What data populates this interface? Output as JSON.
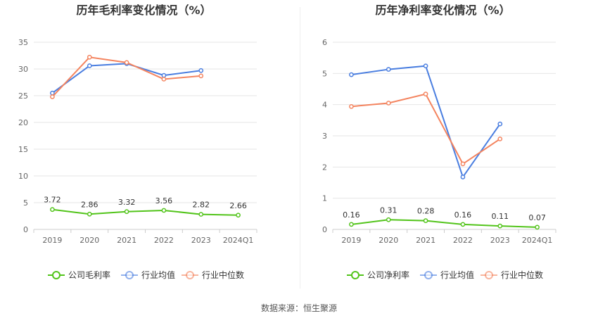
{
  "source": "数据来源：恒生聚源",
  "chart_data": [
    {
      "type": "line",
      "title": "历年毛利率变化情况（%）",
      "categories": [
        "2019",
        "2020",
        "2021",
        "2022",
        "2023",
        "2024Q1"
      ],
      "ylim": [
        0,
        35
      ],
      "yticks": [
        0,
        5,
        10,
        15,
        20,
        25,
        30,
        35
      ],
      "grid": true,
      "legend": "bottom",
      "series": [
        {
          "name": "公司毛利率",
          "color": "#52c41a",
          "values": [
            3.72,
            2.86,
            3.32,
            3.56,
            2.82,
            2.66
          ],
          "labels": [
            "3.72",
            "2.86",
            "3.32",
            "3.56",
            "2.82",
            "2.66"
          ]
        },
        {
          "name": "行业均值",
          "color": "#4a7ee0",
          "values": [
            25.5,
            30.6,
            31.0,
            28.8,
            29.7,
            null
          ]
        },
        {
          "name": "行业中位数",
          "color": "#f4845f",
          "values": [
            24.8,
            32.2,
            31.2,
            28.1,
            28.7,
            null
          ]
        }
      ]
    },
    {
      "type": "line",
      "title": "历年净利率变化情况（%）",
      "categories": [
        "2019",
        "2020",
        "2021",
        "2022",
        "2023",
        "2024Q1"
      ],
      "ylim": [
        0,
        6
      ],
      "yticks": [
        0,
        1,
        2,
        3,
        4,
        5,
        6
      ],
      "grid": true,
      "legend": "bottom",
      "series": [
        {
          "name": "公司净利率",
          "color": "#52c41a",
          "values": [
            0.16,
            0.31,
            0.28,
            0.16,
            0.11,
            0.07
          ],
          "labels": [
            "0.16",
            "0.31",
            "0.28",
            "0.16",
            "0.11",
            "0.07"
          ]
        },
        {
          "name": "行业均值",
          "color": "#4a7ee0",
          "values": [
            4.96,
            5.13,
            5.24,
            1.68,
            3.38,
            null
          ]
        },
        {
          "name": "行业中位数",
          "color": "#f4845f",
          "values": [
            3.94,
            4.05,
            4.34,
            2.1,
            2.9,
            null
          ]
        }
      ]
    }
  ]
}
